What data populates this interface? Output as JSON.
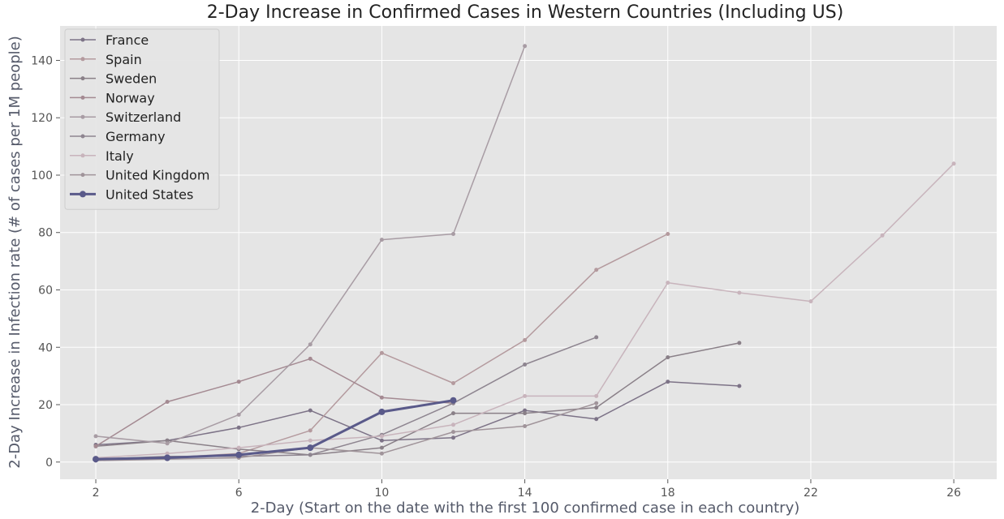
{
  "chart_data": {
    "type": "line",
    "title": "2-Day Increase in Confirmed Cases in Western Countries (Including US)",
    "xlabel": "2-Day (Start on the date with the first 100 confirmed case in each country)",
    "ylabel": "2-Day Increase in Infection rate (# of cases per 1M people)",
    "xlim": [
      1,
      27.2
    ],
    "ylim": [
      -6,
      152
    ],
    "xticks": [
      2,
      6,
      10,
      14,
      18,
      22,
      26
    ],
    "yticks": [
      0,
      20,
      40,
      60,
      80,
      100,
      120,
      140
    ],
    "grid": true,
    "legend": "top-left",
    "background": "#e5e5e5",
    "series": [
      {
        "name": "France",
        "color": "#7d7387",
        "width": 1.5,
        "marker": 2.5,
        "x": [
          2,
          4,
          6,
          8,
          10,
          12,
          14,
          16,
          18,
          20
        ],
        "y": [
          6,
          7.5,
          12,
          18,
          7.5,
          8.5,
          18,
          15,
          28,
          26.5
        ]
      },
      {
        "name": "Spain",
        "color": "#b49a9e",
        "width": 1.5,
        "marker": 2.5,
        "x": [
          2,
          4,
          6,
          8,
          10,
          12,
          14,
          16,
          18
        ],
        "y": [
          1,
          1.5,
          3,
          11,
          38,
          27.5,
          42.5,
          67,
          79.5
        ]
      },
      {
        "name": "Sweden",
        "color": "#8a8088",
        "width": 1.5,
        "marker": 2.5,
        "x": [
          2,
          4,
          6,
          8,
          10,
          12,
          14,
          16,
          18,
          20
        ],
        "y": [
          5.5,
          7.5,
          4.5,
          2.5,
          5,
          17,
          17,
          19,
          36.5,
          41.5
        ]
      },
      {
        "name": "Norway",
        "color": "#a48a92",
        "width": 1.5,
        "marker": 2.5,
        "x": [
          2,
          4,
          6,
          8,
          10,
          12
        ],
        "y": [
          5.5,
          21,
          28,
          36,
          22.5,
          20.5
        ]
      },
      {
        "name": "Switzerland",
        "color": "#a89ca4",
        "width": 1.5,
        "marker": 2.5,
        "x": [
          2,
          4,
          6,
          8,
          10,
          12,
          14,
          16
        ],
        "y": [
          9,
          6.5,
          16.5,
          41,
          77.5,
          79.5,
          145,
          null
        ]
      },
      {
        "name": "Germany",
        "color": "#8e8590",
        "width": 1.5,
        "marker": 2.5,
        "x": [
          2,
          4,
          6,
          8,
          10,
          12,
          14,
          16
        ],
        "y": [
          1,
          2,
          2,
          2.5,
          9.5,
          20.5,
          34,
          43.5
        ]
      },
      {
        "name": "Italy",
        "color": "#c8b4bc",
        "width": 1.5,
        "marker": 2.5,
        "x": [
          2,
          4,
          6,
          8,
          10,
          12,
          14,
          16,
          18,
          20,
          22,
          24,
          26
        ],
        "y": [
          1.5,
          3,
          5,
          7.5,
          9,
          13,
          23,
          23,
          62.5,
          59,
          56,
          79,
          104
        ]
      },
      {
        "name": "United Kingdom",
        "color": "#a0949a",
        "width": 1.5,
        "marker": 2.5,
        "x": [
          2,
          4,
          6,
          8,
          10,
          12,
          14,
          16
        ],
        "y": [
          0.5,
          1,
          1.5,
          5,
          3,
          10.5,
          12.5,
          20.5
        ]
      },
      {
        "name": "United States",
        "color": "#5a5a8a",
        "width": 3,
        "marker": 4,
        "x": [
          2,
          4,
          6,
          8,
          10,
          12
        ],
        "y": [
          1,
          1.5,
          2.5,
          5,
          17.5,
          21.5
        ]
      }
    ]
  }
}
